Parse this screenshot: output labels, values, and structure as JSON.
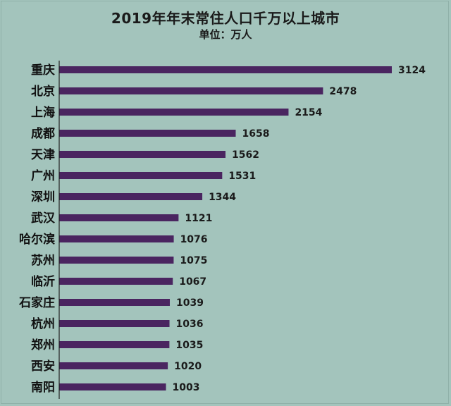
{
  "chart_data": {
    "type": "bar",
    "orientation": "horizontal",
    "title": "2019年年末常住人口千万以上城市",
    "subtitle": "单位：万人",
    "categories": [
      "重庆",
      "北京",
      "上海",
      "成都",
      "天津",
      "广州",
      "深圳",
      "武汉",
      "哈尔滨",
      "苏州",
      "临沂",
      "石家庄",
      "杭州",
      "郑州",
      "西安",
      "南阳"
    ],
    "values": [
      3124,
      2478,
      2154,
      1658,
      1562,
      1531,
      1344,
      1121,
      1076,
      1075,
      1067,
      1039,
      1036,
      1035,
      1020,
      1003
    ],
    "xlim": [
      0,
      3124
    ],
    "grid": false,
    "legend": "none",
    "colors": {
      "bar": "#4a2560",
      "background": "#a3c4bc",
      "axis": "#222222"
    }
  }
}
